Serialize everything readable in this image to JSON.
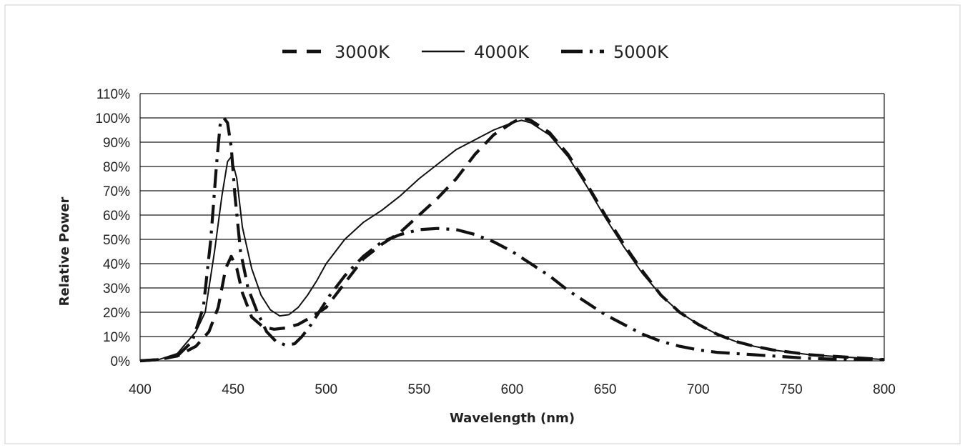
{
  "chart_data": {
    "type": "line",
    "title": "",
    "xlabel": "Wavelength (nm)",
    "ylabel": "Relative  Power",
    "xlim": [
      400,
      800
    ],
    "ylim": [
      0,
      110
    ],
    "x_ticks": [
      400,
      450,
      500,
      550,
      600,
      650,
      700,
      750,
      800
    ],
    "y_ticks": [
      "0%",
      "10%",
      "20%",
      "30%",
      "40%",
      "50%",
      "60%",
      "70%",
      "80%",
      "90%",
      "100%",
      "110%"
    ],
    "grid": "horizontal",
    "legend_position": "top",
    "series": [
      {
        "name": "3000K",
        "dash": "dashed",
        "x": [
          400,
          410,
          420,
          430,
          437,
          442,
          446,
          449,
          452,
          455,
          460,
          466,
          472,
          478,
          485,
          492,
          500,
          510,
          520,
          530,
          540,
          550,
          560,
          570,
          580,
          590,
          600,
          605,
          610,
          620,
          630,
          640,
          650,
          660,
          670,
          680,
          690,
          700,
          710,
          720,
          730,
          740,
          750,
          760,
          770,
          780,
          790,
          800
        ],
        "y": [
          0,
          0.5,
          2,
          6,
          12,
          22,
          38,
          43,
          38,
          28,
          18,
          14,
          13,
          13.5,
          15,
          18,
          22,
          32,
          42,
          48,
          53,
          60,
          67,
          75,
          85,
          93,
          98,
          100,
          99,
          94,
          85,
          73,
          60,
          48,
          37,
          27,
          20,
          15,
          11,
          8,
          6,
          4.5,
          3.5,
          2.5,
          2,
          1.5,
          1,
          0.5
        ]
      },
      {
        "name": "4000K",
        "dash": "solid",
        "x": [
          400,
          410,
          420,
          430,
          435,
          440,
          444,
          447,
          449,
          452,
          455,
          460,
          465,
          470,
          475,
          480,
          485,
          490,
          495,
          500,
          510,
          520,
          530,
          540,
          550,
          560,
          570,
          580,
          590,
          600,
          605,
          610,
          620,
          630,
          640,
          650,
          660,
          670,
          680,
          690,
          700,
          710,
          720,
          730,
          740,
          750,
          760,
          770,
          780,
          790,
          800
        ],
        "y": [
          0,
          0.5,
          3,
          12,
          20,
          45,
          68,
          82,
          84,
          75,
          55,
          38,
          27,
          21,
          18.5,
          19,
          22,
          27,
          33,
          40,
          50,
          57,
          62,
          68,
          75,
          81,
          87,
          91,
          95,
          98,
          99,
          98,
          93,
          84,
          72,
          59,
          47,
          36,
          27,
          20,
          15,
          11,
          8,
          6,
          4.5,
          3.5,
          2.5,
          2,
          1.5,
          1,
          0.5
        ]
      },
      {
        "name": "5000K",
        "dash": "dashdot",
        "x": [
          400,
          410,
          420,
          428,
          434,
          438,
          441,
          443,
          445,
          447,
          449,
          451,
          454,
          458,
          463,
          468,
          473,
          478,
          483,
          487,
          492,
          497,
          502,
          510,
          520,
          530,
          540,
          550,
          560,
          570,
          580,
          590,
          600,
          610,
          620,
          630,
          640,
          650,
          660,
          670,
          680,
          690,
          700,
          710,
          720,
          730,
          740,
          750,
          760,
          770,
          780,
          790,
          800
        ],
        "y": [
          0,
          0.5,
          2,
          8,
          22,
          50,
          80,
          97,
          100,
          98,
          88,
          68,
          45,
          30,
          20,
          12,
          8,
          6.5,
          7,
          10,
          15,
          21,
          27,
          35,
          43,
          49,
          52,
          54,
          54.5,
          54,
          52,
          49,
          45,
          40,
          35,
          29,
          24,
          19,
          15,
          11,
          8,
          6,
          4.5,
          3.5,
          3,
          2.5,
          2,
          1.5,
          1,
          0.8,
          0.6,
          0.5,
          0.5
        ]
      }
    ]
  }
}
